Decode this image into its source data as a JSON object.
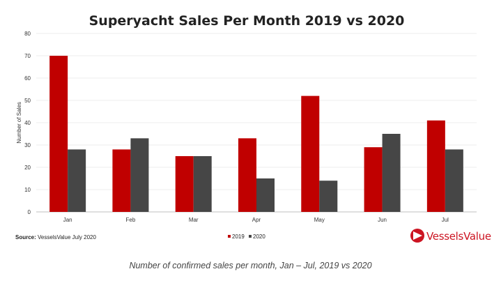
{
  "chart_data": {
    "type": "bar",
    "title": "Superyacht Sales Per Month 2019 vs 2020",
    "ylabel": "Number of Sales",
    "xlabel": "",
    "ylim": [
      0,
      80
    ],
    "yticks": [
      0,
      10,
      20,
      30,
      40,
      50,
      60,
      70,
      80
    ],
    "grid": true,
    "legend": "bottom-center",
    "categories": [
      "Jan",
      "Feb",
      "Mar",
      "Apr",
      "May",
      "Jun",
      "Jul"
    ],
    "series": [
      {
        "name": "2019",
        "color": "#c00000",
        "values": [
          70,
          28,
          25,
          33,
          52,
          29,
          41
        ]
      },
      {
        "name": "2020",
        "color": "#464646",
        "values": [
          28,
          33,
          25,
          15,
          14,
          35,
          28
        ]
      }
    ]
  },
  "footer": {
    "source_label": "Source:",
    "source_text": " VesselsValue July 2020",
    "logo_text": "VesselsValue"
  },
  "caption": "Number of confirmed sales per month, Jan – Jul, 2019 vs 2020"
}
